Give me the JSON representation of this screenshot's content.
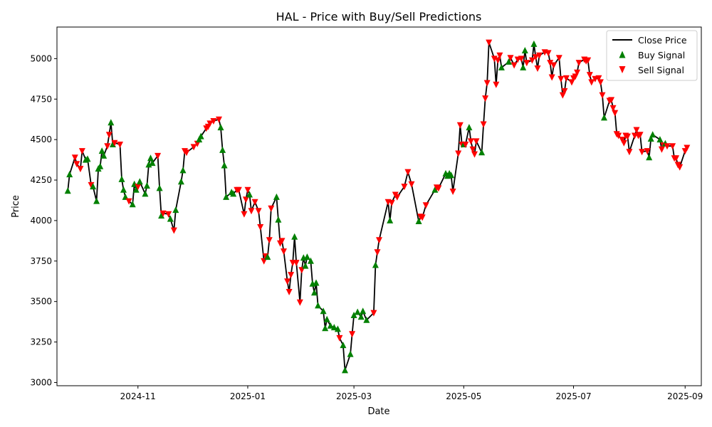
{
  "chart_data": {
    "type": "line",
    "title": "HAL - Price with Buy/Sell Predictions",
    "xlabel": "Date",
    "ylabel": "Price",
    "x_domain": [
      "2024-09-17",
      "2025-09-10"
    ],
    "ylim": [
      2980,
      5195
    ],
    "x_ticks": [
      {
        "date": "2024-11-01",
        "label": "2024-11"
      },
      {
        "date": "2025-01-01",
        "label": "2025-01"
      },
      {
        "date": "2025-03-01",
        "label": "2025-03"
      },
      {
        "date": "2025-05-01",
        "label": "2025-05"
      },
      {
        "date": "2025-07-01",
        "label": "2025-07"
      },
      {
        "date": "2025-09-01",
        "label": "2025-09"
      }
    ],
    "y_ticks": [
      3000,
      3250,
      3500,
      3750,
      4000,
      4250,
      4500,
      4750,
      5000
    ],
    "grid": false,
    "legend_position": "top-right",
    "series": [
      {
        "name": "Close Price",
        "kind": "line",
        "color": "#000000"
      },
      {
        "name": "Buy Signal",
        "kind": "scatter",
        "marker": "triangle-up",
        "color": "#008000"
      },
      {
        "name": "Sell Signal",
        "kind": "scatter",
        "marker": "triangle-down",
        "color": "#ff0000"
      }
    ],
    "points": [
      [
        "2024-09-23",
        4183,
        "B"
      ],
      [
        "2024-09-24",
        4285,
        "B"
      ],
      [
        "2024-09-27",
        4390,
        "S"
      ],
      [
        "2024-09-28",
        4350,
        "S"
      ],
      [
        "2024-09-30",
        4320,
        "S"
      ],
      [
        "2024-10-01",
        4430,
        "S"
      ],
      [
        "2024-10-03",
        4375,
        "B"
      ],
      [
        "2024-10-04",
        4380,
        "B"
      ],
      [
        "2024-10-06",
        4220,
        "S"
      ],
      [
        "2024-10-07",
        4210,
        "B"
      ],
      [
        "2024-10-09",
        4120,
        "B"
      ],
      [
        "2024-10-10",
        4320,
        "B"
      ],
      [
        "2024-10-11",
        4335,
        "B"
      ],
      [
        "2024-10-12",
        4430,
        "B"
      ],
      [
        "2024-10-13",
        4400,
        "B"
      ],
      [
        "2024-10-15",
        4460,
        "S"
      ],
      [
        "2024-10-16",
        4530,
        "S"
      ],
      [
        "2024-10-17",
        4605,
        "B"
      ],
      [
        "2024-10-18",
        4470,
        "B"
      ],
      [
        "2024-10-19",
        4480,
        "S"
      ],
      [
        "2024-10-22",
        4470,
        "S"
      ],
      [
        "2024-10-23",
        4255,
        "B"
      ],
      [
        "2024-10-24",
        4190,
        "B"
      ],
      [
        "2024-10-25",
        4145,
        "B"
      ],
      [
        "2024-10-27",
        4120,
        "S"
      ],
      [
        "2024-10-29",
        4100,
        "B"
      ],
      [
        "2024-10-30",
        4225,
        "B"
      ],
      [
        "2024-10-31",
        4190,
        "B"
      ],
      [
        "2024-11-01",
        4210,
        "S"
      ],
      [
        "2024-11-02",
        4240,
        "B"
      ],
      [
        "2024-11-05",
        4165,
        "B"
      ],
      [
        "2024-11-06",
        4215,
        "B"
      ],
      [
        "2024-11-07",
        4345,
        "B"
      ],
      [
        "2024-11-08",
        4385,
        "B"
      ],
      [
        "2024-11-09",
        4355,
        "B"
      ],
      [
        "2024-11-12",
        4400,
        "S"
      ],
      [
        "2024-11-13",
        4200,
        "B"
      ],
      [
        "2024-11-14",
        4030,
        "B"
      ],
      [
        "2024-11-15",
        4045,
        "S"
      ],
      [
        "2024-11-18",
        4040,
        "S"
      ],
      [
        "2024-11-19",
        4010,
        "B"
      ],
      [
        "2024-11-21",
        3940,
        "S"
      ],
      [
        "2024-11-22",
        4065,
        "B"
      ],
      [
        "2024-11-25",
        4240,
        "B"
      ],
      [
        "2024-11-26",
        4310,
        "B"
      ],
      [
        "2024-11-27",
        4430,
        "S"
      ],
      [
        "2024-11-28",
        4420,
        "S"
      ],
      [
        "2024-12-02",
        4455,
        "S"
      ],
      [
        "2024-12-04",
        4475,
        "S"
      ],
      [
        "2024-12-05",
        4500,
        "B"
      ],
      [
        "2024-12-06",
        4520,
        "B"
      ],
      [
        "2024-12-09",
        4570,
        "S"
      ],
      [
        "2024-12-10",
        4580,
        "S"
      ],
      [
        "2024-12-11",
        4600,
        "S"
      ],
      [
        "2024-12-13",
        4615,
        "S"
      ],
      [
        "2024-12-16",
        4625,
        "S"
      ],
      [
        "2024-12-17",
        4575,
        "B"
      ],
      [
        "2024-12-18",
        4435,
        "B"
      ],
      [
        "2024-12-19",
        4340,
        "B"
      ],
      [
        "2024-12-20",
        4145,
        "B"
      ],
      [
        "2024-12-23",
        4175,
        "B"
      ],
      [
        "2024-12-24",
        4165,
        "B"
      ],
      [
        "2024-12-26",
        4190,
        "S"
      ],
      [
        "2024-12-27",
        4190,
        "S"
      ],
      [
        "2024-12-30",
        4040,
        "S"
      ],
      [
        "2024-12-31",
        4130,
        "S"
      ],
      [
        "2025-01-01",
        4190,
        "S"
      ],
      [
        "2025-01-02",
        4160,
        "B"
      ],
      [
        "2025-01-03",
        4060,
        "S"
      ],
      [
        "2025-01-05",
        4115,
        "S"
      ],
      [
        "2025-01-07",
        4060,
        "S"
      ],
      [
        "2025-01-08",
        3960,
        "S"
      ],
      [
        "2025-01-10",
        3750,
        "S"
      ],
      [
        "2025-01-11",
        3780,
        "S"
      ],
      [
        "2025-01-12",
        3775,
        "B"
      ],
      [
        "2025-01-13",
        3880,
        "S"
      ],
      [
        "2025-01-14",
        4075,
        "S"
      ],
      [
        "2025-01-17",
        4145,
        "B"
      ],
      [
        "2025-01-18",
        4005,
        "B"
      ],
      [
        "2025-01-19",
        3860,
        "S"
      ],
      [
        "2025-01-20",
        3875,
        "S"
      ],
      [
        "2025-01-21",
        3810,
        "S"
      ],
      [
        "2025-01-23",
        3625,
        "S"
      ],
      [
        "2025-01-24",
        3560,
        "S"
      ],
      [
        "2025-01-25",
        3665,
        "S"
      ],
      [
        "2025-01-26",
        3740,
        "S"
      ],
      [
        "2025-01-27",
        3900,
        "B"
      ],
      [
        "2025-01-28",
        3740,
        "S"
      ],
      [
        "2025-01-30",
        3495,
        "S"
      ],
      [
        "2025-01-31",
        3695,
        "S"
      ],
      [
        "2025-02-01",
        3770,
        "B"
      ],
      [
        "2025-02-02",
        3720,
        "B"
      ],
      [
        "2025-02-03",
        3775,
        "B"
      ],
      [
        "2025-02-05",
        3750,
        "B"
      ],
      [
        "2025-02-06",
        3610,
        "B"
      ],
      [
        "2025-02-07",
        3555,
        "B"
      ],
      [
        "2025-02-08",
        3615,
        "B"
      ],
      [
        "2025-02-09",
        3475,
        "B"
      ],
      [
        "2025-02-12",
        3440,
        "B"
      ],
      [
        "2025-02-13",
        3335,
        "B"
      ],
      [
        "2025-02-14",
        3390,
        "B"
      ],
      [
        "2025-02-16",
        3350,
        "B"
      ],
      [
        "2025-02-18",
        3340,
        "B"
      ],
      [
        "2025-02-20",
        3330,
        "B"
      ],
      [
        "2025-02-21",
        3275,
        "S"
      ],
      [
        "2025-02-23",
        3230,
        "B"
      ],
      [
        "2025-02-24",
        3075,
        "B"
      ],
      [
        "2025-02-27",
        3175,
        "B"
      ],
      [
        "2025-02-28",
        3300,
        "S"
      ],
      [
        "2025-03-01",
        3415,
        "B"
      ],
      [
        "2025-03-03",
        3435,
        "B"
      ],
      [
        "2025-03-05",
        3405,
        "B"
      ],
      [
        "2025-03-06",
        3440,
        "B"
      ],
      [
        "2025-03-08",
        3385,
        "B"
      ],
      [
        "2025-03-12",
        3430,
        "S"
      ],
      [
        "2025-03-13",
        3725,
        "B"
      ],
      [
        "2025-03-14",
        3805,
        "S"
      ],
      [
        "2025-03-15",
        3880,
        "S"
      ],
      [
        "2025-03-20",
        4115,
        "S"
      ],
      [
        "2025-03-21",
        4000,
        "B"
      ],
      [
        "2025-03-22",
        4110,
        "S"
      ],
      [
        "2025-03-24",
        4160,
        "S"
      ],
      [
        "2025-03-25",
        4145,
        "S"
      ],
      [
        "2025-03-29",
        4210,
        "S"
      ],
      [
        "2025-03-31",
        4300,
        "S"
      ],
      [
        "2025-04-02",
        4225,
        "S"
      ],
      [
        "2025-04-06",
        3995,
        "B"
      ],
      [
        "2025-04-07",
        4025,
        "S"
      ],
      [
        "2025-04-08",
        4020,
        "S"
      ],
      [
        "2025-04-10",
        4095,
        "S"
      ],
      [
        "2025-04-15",
        4190,
        "B"
      ],
      [
        "2025-04-16",
        4205,
        "S"
      ],
      [
        "2025-04-17",
        4200,
        "S"
      ],
      [
        "2025-04-21",
        4290,
        "B"
      ],
      [
        "2025-04-22",
        4275,
        "B"
      ],
      [
        "2025-04-23",
        4290,
        "B"
      ],
      [
        "2025-04-24",
        4280,
        "B"
      ],
      [
        "2025-04-25",
        4180,
        "S"
      ],
      [
        "2025-04-28",
        4415,
        "S"
      ],
      [
        "2025-04-29",
        4590,
        "S"
      ],
      [
        "2025-04-30",
        4470,
        "S"
      ],
      [
        "2025-05-01",
        4470,
        "B"
      ],
      [
        "2025-05-02",
        4470,
        "S"
      ],
      [
        "2025-05-04",
        4575,
        "B"
      ],
      [
        "2025-05-05",
        4490,
        "S"
      ],
      [
        "2025-05-06",
        4440,
        "S"
      ],
      [
        "2025-05-07",
        4410,
        "S"
      ],
      [
        "2025-05-08",
        4490,
        "S"
      ],
      [
        "2025-05-11",
        4420,
        "B"
      ],
      [
        "2025-05-12",
        4595,
        "S"
      ],
      [
        "2025-05-13",
        4755,
        "S"
      ],
      [
        "2025-05-14",
        4850,
        "S"
      ],
      [
        "2025-05-15",
        5100,
        "S"
      ],
      [
        "2025-05-18",
        5000,
        "S"
      ],
      [
        "2025-05-19",
        4840,
        "S"
      ],
      [
        "2025-05-20",
        4990,
        "S"
      ],
      [
        "2025-05-21",
        5020,
        "S"
      ],
      [
        "2025-05-22",
        4945,
        "B"
      ],
      [
        "2025-05-26",
        4980,
        "B"
      ],
      [
        "2025-05-27",
        5005,
        "S"
      ],
      [
        "2025-05-29",
        4960,
        "S"
      ],
      [
        "2025-05-31",
        4995,
        "S"
      ],
      [
        "2025-06-02",
        5000,
        "S"
      ],
      [
        "2025-06-03",
        4945,
        "B"
      ],
      [
        "2025-06-04",
        5050,
        "B"
      ],
      [
        "2025-06-05",
        4975,
        "S"
      ],
      [
        "2025-06-08",
        4990,
        "S"
      ],
      [
        "2025-06-09",
        5090,
        "B"
      ],
      [
        "2025-06-10",
        5010,
        "S"
      ],
      [
        "2025-06-11",
        4940,
        "S"
      ],
      [
        "2025-06-12",
        5020,
        "S"
      ],
      [
        "2025-06-15",
        5040,
        "S"
      ],
      [
        "2025-06-17",
        5035,
        "S"
      ],
      [
        "2025-06-18",
        4975,
        "S"
      ],
      [
        "2025-06-19",
        4885,
        "S"
      ],
      [
        "2025-06-20",
        4960,
        "S"
      ],
      [
        "2025-06-23",
        5005,
        "S"
      ],
      [
        "2025-06-24",
        4875,
        "S"
      ],
      [
        "2025-06-25",
        4775,
        "S"
      ],
      [
        "2025-06-26",
        4800,
        "S"
      ],
      [
        "2025-06-27",
        4880,
        "S"
      ],
      [
        "2025-06-30",
        4855,
        "S"
      ],
      [
        "2025-07-01",
        4880,
        "S"
      ],
      [
        "2025-07-02",
        4890,
        "S"
      ],
      [
        "2025-07-03",
        4915,
        "S"
      ],
      [
        "2025-07-04",
        4975,
        "S"
      ],
      [
        "2025-07-07",
        4995,
        "S"
      ],
      [
        "2025-07-08",
        4985,
        "S"
      ],
      [
        "2025-07-09",
        4990,
        "S"
      ],
      [
        "2025-07-10",
        4900,
        "S"
      ],
      [
        "2025-07-11",
        4855,
        "S"
      ],
      [
        "2025-07-13",
        4875,
        "S"
      ],
      [
        "2025-07-15",
        4880,
        "S"
      ],
      [
        "2025-07-16",
        4855,
        "S"
      ],
      [
        "2025-07-17",
        4775,
        "S"
      ],
      [
        "2025-07-18",
        4635,
        "B"
      ],
      [
        "2025-07-21",
        4740,
        "S"
      ],
      [
        "2025-07-22",
        4745,
        "S"
      ],
      [
        "2025-07-23",
        4695,
        "S"
      ],
      [
        "2025-07-24",
        4665,
        "S"
      ],
      [
        "2025-07-25",
        4535,
        "S"
      ],
      [
        "2025-07-26",
        4525,
        "S"
      ],
      [
        "2025-07-28",
        4500,
        "S"
      ],
      [
        "2025-07-29",
        4480,
        "S"
      ],
      [
        "2025-07-30",
        4525,
        "S"
      ],
      [
        "2025-07-31",
        4520,
        "S"
      ],
      [
        "2025-08-01",
        4425,
        "S"
      ],
      [
        "2025-08-04",
        4525,
        "S"
      ],
      [
        "2025-08-05",
        4560,
        "S"
      ],
      [
        "2025-08-06",
        4525,
        "S"
      ],
      [
        "2025-08-07",
        4530,
        "S"
      ],
      [
        "2025-08-08",
        4425,
        "S"
      ],
      [
        "2025-08-11",
        4430,
        "S"
      ],
      [
        "2025-08-12",
        4390,
        "B"
      ],
      [
        "2025-08-13",
        4505,
        "B"
      ],
      [
        "2025-08-14",
        4530,
        "B"
      ],
      [
        "2025-08-18",
        4500,
        "B"
      ],
      [
        "2025-08-19",
        4440,
        "S"
      ],
      [
        "2025-08-20",
        4465,
        "S"
      ],
      [
        "2025-08-21",
        4475,
        "B"
      ],
      [
        "2025-08-22",
        4460,
        "S"
      ],
      [
        "2025-08-25",
        4460,
        "S"
      ],
      [
        "2025-08-26",
        4385,
        "S"
      ],
      [
        "2025-08-27",
        4385,
        "S"
      ],
      [
        "2025-08-28",
        4345,
        "S"
      ],
      [
        "2025-08-29",
        4330,
        "S"
      ],
      [
        "2025-09-01",
        4430,
        "S"
      ],
      [
        "2025-09-02",
        4450,
        "S"
      ]
    ]
  }
}
